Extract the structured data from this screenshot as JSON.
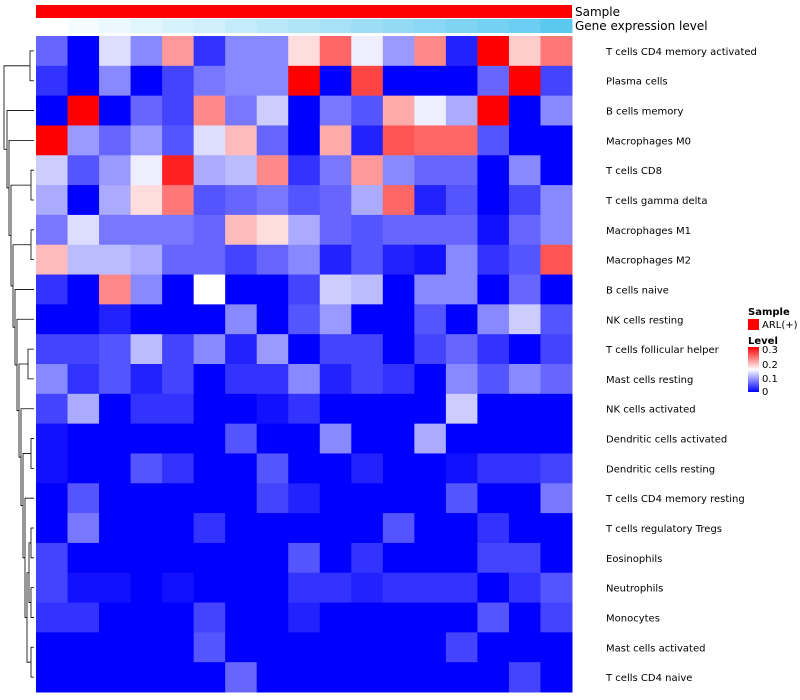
{
  "chart_data": {
    "type": "heatmap",
    "top_annotations": [
      {
        "name": "Sample",
        "color": "#ff0000"
      },
      {
        "name": "Gene expression level",
        "gradient": [
          "#ffffff",
          "#5bc8f0"
        ]
      }
    ],
    "rows": [
      "T cells CD4 memory activated",
      "Plasma cells",
      "B cells memory",
      "Macrophages M0",
      "T cells CD8",
      "T cells gamma delta",
      "Macrophages M1",
      "Macrophages M2",
      "B cells naive",
      "NK cells resting",
      "T cells follicular helper",
      "Mast cells resting",
      "NK cells activated",
      "Dendritic cells activated",
      "Dendritic cells resting",
      "T cells CD4 memory resting",
      "T cells regulatory  Tregs",
      "Eosinophils",
      "Neutrophils",
      "Monocytes",
      "Mast cells activated",
      "T cells CD4 naive"
    ],
    "n_columns": 17,
    "values": [
      [
        0.06,
        0.0,
        0.13,
        0.08,
        0.21,
        0.03,
        0.08,
        0.08,
        0.17,
        0.24,
        0.14,
        0.09,
        0.22,
        0.02,
        0.3,
        0.18,
        0.23
      ],
      [
        0.03,
        0.0,
        0.08,
        0.0,
        0.04,
        0.07,
        0.08,
        0.08,
        0.3,
        0.0,
        0.26,
        0.0,
        0.0,
        0.0,
        0.06,
        0.3,
        0.04
      ],
      [
        0.0,
        0.3,
        0.0,
        0.06,
        0.04,
        0.22,
        0.07,
        0.12,
        0.0,
        0.07,
        0.05,
        0.2,
        0.14,
        0.1,
        0.3,
        0.0,
        0.08
      ],
      [
        0.3,
        0.09,
        0.06,
        0.09,
        0.05,
        0.13,
        0.19,
        0.06,
        0.0,
        0.2,
        0.02,
        0.25,
        0.24,
        0.24,
        0.05,
        0.0,
        0.0
      ],
      [
        0.12,
        0.05,
        0.09,
        0.14,
        0.28,
        0.1,
        0.11,
        0.22,
        0.03,
        0.07,
        0.21,
        0.08,
        0.06,
        0.06,
        0.0,
        0.08,
        0.0
      ],
      [
        0.1,
        0.0,
        0.1,
        0.17,
        0.23,
        0.05,
        0.06,
        0.07,
        0.05,
        0.06,
        0.1,
        0.24,
        0.02,
        0.05,
        0.0,
        0.04,
        0.08
      ],
      [
        0.07,
        0.13,
        0.07,
        0.07,
        0.07,
        0.06,
        0.19,
        0.17,
        0.1,
        0.06,
        0.05,
        0.06,
        0.06,
        0.06,
        0.01,
        0.06,
        0.08
      ],
      [
        0.19,
        0.11,
        0.11,
        0.1,
        0.06,
        0.06,
        0.04,
        0.06,
        0.08,
        0.02,
        0.05,
        0.02,
        0.01,
        0.08,
        0.03,
        0.05,
        0.25
      ],
      [
        0.03,
        0.0,
        0.22,
        0.08,
        0.0,
        0.15,
        0.0,
        0.0,
        0.04,
        0.12,
        0.11,
        0.0,
        0.08,
        0.08,
        0.0,
        0.06,
        0.0
      ],
      [
        0.0,
        0.0,
        0.02,
        0.0,
        0.0,
        0.0,
        0.08,
        0.0,
        0.05,
        0.09,
        0.0,
        0.0,
        0.05,
        0.0,
        0.08,
        0.12,
        0.05
      ],
      [
        0.04,
        0.04,
        0.05,
        0.11,
        0.04,
        0.08,
        0.02,
        0.09,
        0.0,
        0.04,
        0.04,
        0.0,
        0.04,
        0.06,
        0.03,
        0.0,
        0.04
      ],
      [
        0.08,
        0.03,
        0.05,
        0.02,
        0.04,
        0.0,
        0.03,
        0.03,
        0.08,
        0.02,
        0.04,
        0.03,
        0.0,
        0.08,
        0.05,
        0.08,
        0.06
      ],
      [
        0.04,
        0.1,
        0.0,
        0.03,
        0.03,
        0.0,
        0.0,
        0.01,
        0.03,
        0.0,
        0.0,
        0.0,
        0.0,
        0.12,
        0.0,
        0.0,
        0.0
      ],
      [
        0.01,
        0.0,
        0.0,
        0.0,
        0.0,
        0.0,
        0.05,
        0.0,
        0.0,
        0.08,
        0.0,
        0.0,
        0.1,
        0.0,
        0.0,
        0.0,
        0.0
      ],
      [
        0.01,
        0.0,
        0.0,
        0.05,
        0.03,
        0.0,
        0.0,
        0.05,
        0.0,
        0.0,
        0.02,
        0.0,
        0.0,
        0.01,
        0.03,
        0.03,
        0.04
      ],
      [
        0.0,
        0.05,
        0.0,
        0.0,
        0.0,
        0.0,
        0.0,
        0.04,
        0.02,
        0.0,
        0.0,
        0.0,
        0.0,
        0.05,
        0.0,
        0.0,
        0.07
      ],
      [
        0.0,
        0.07,
        0.0,
        0.0,
        0.0,
        0.03,
        0.0,
        0.0,
        0.0,
        0.0,
        0.0,
        0.05,
        0.0,
        0.0,
        0.03,
        0.0,
        0.0
      ],
      [
        0.04,
        0.0,
        0.0,
        0.0,
        0.0,
        0.0,
        0.0,
        0.0,
        0.05,
        0.0,
        0.03,
        0.0,
        0.0,
        0.0,
        0.04,
        0.04,
        0.0
      ],
      [
        0.04,
        0.01,
        0.01,
        0.0,
        0.01,
        0.0,
        0.0,
        0.0,
        0.03,
        0.03,
        0.02,
        0.03,
        0.03,
        0.03,
        0.0,
        0.03,
        0.05
      ],
      [
        0.03,
        0.03,
        0.0,
        0.0,
        0.0,
        0.04,
        0.0,
        0.0,
        0.02,
        0.0,
        0.0,
        0.0,
        0.0,
        0.0,
        0.05,
        0.0,
        0.04
      ],
      [
        0.0,
        0.0,
        0.0,
        0.0,
        0.0,
        0.05,
        0.0,
        0.0,
        0.0,
        0.0,
        0.0,
        0.0,
        0.0,
        0.04,
        0.0,
        0.0,
        0.0
      ],
      [
        0.0,
        0.0,
        0.0,
        0.0,
        0.0,
        0.0,
        0.06,
        0.0,
        0.0,
        0.0,
        0.0,
        0.0,
        0.0,
        0.0,
        0.0,
        0.04,
        0.0
      ]
    ],
    "gene_expression_level": [
      0.0,
      0.06,
      0.12,
      0.18,
      0.24,
      0.3,
      0.36,
      0.42,
      0.48,
      0.54,
      0.6,
      0.66,
      0.72,
      0.78,
      0.84,
      0.9,
      1.0
    ],
    "color_scale": {
      "min": 0,
      "max": 0.3,
      "colors": [
        "#0000ff",
        "#ffffff",
        "#ff0000"
      ]
    },
    "legend": {
      "sample_title": "Sample",
      "sample_entry": "ARL(+)",
      "sample_color": "#ff0000",
      "level_title": "Level",
      "level_ticks": [
        "0.3",
        "0.2",
        "0.1",
        "0"
      ]
    },
    "dendrogram": "left, rows clustered"
  }
}
